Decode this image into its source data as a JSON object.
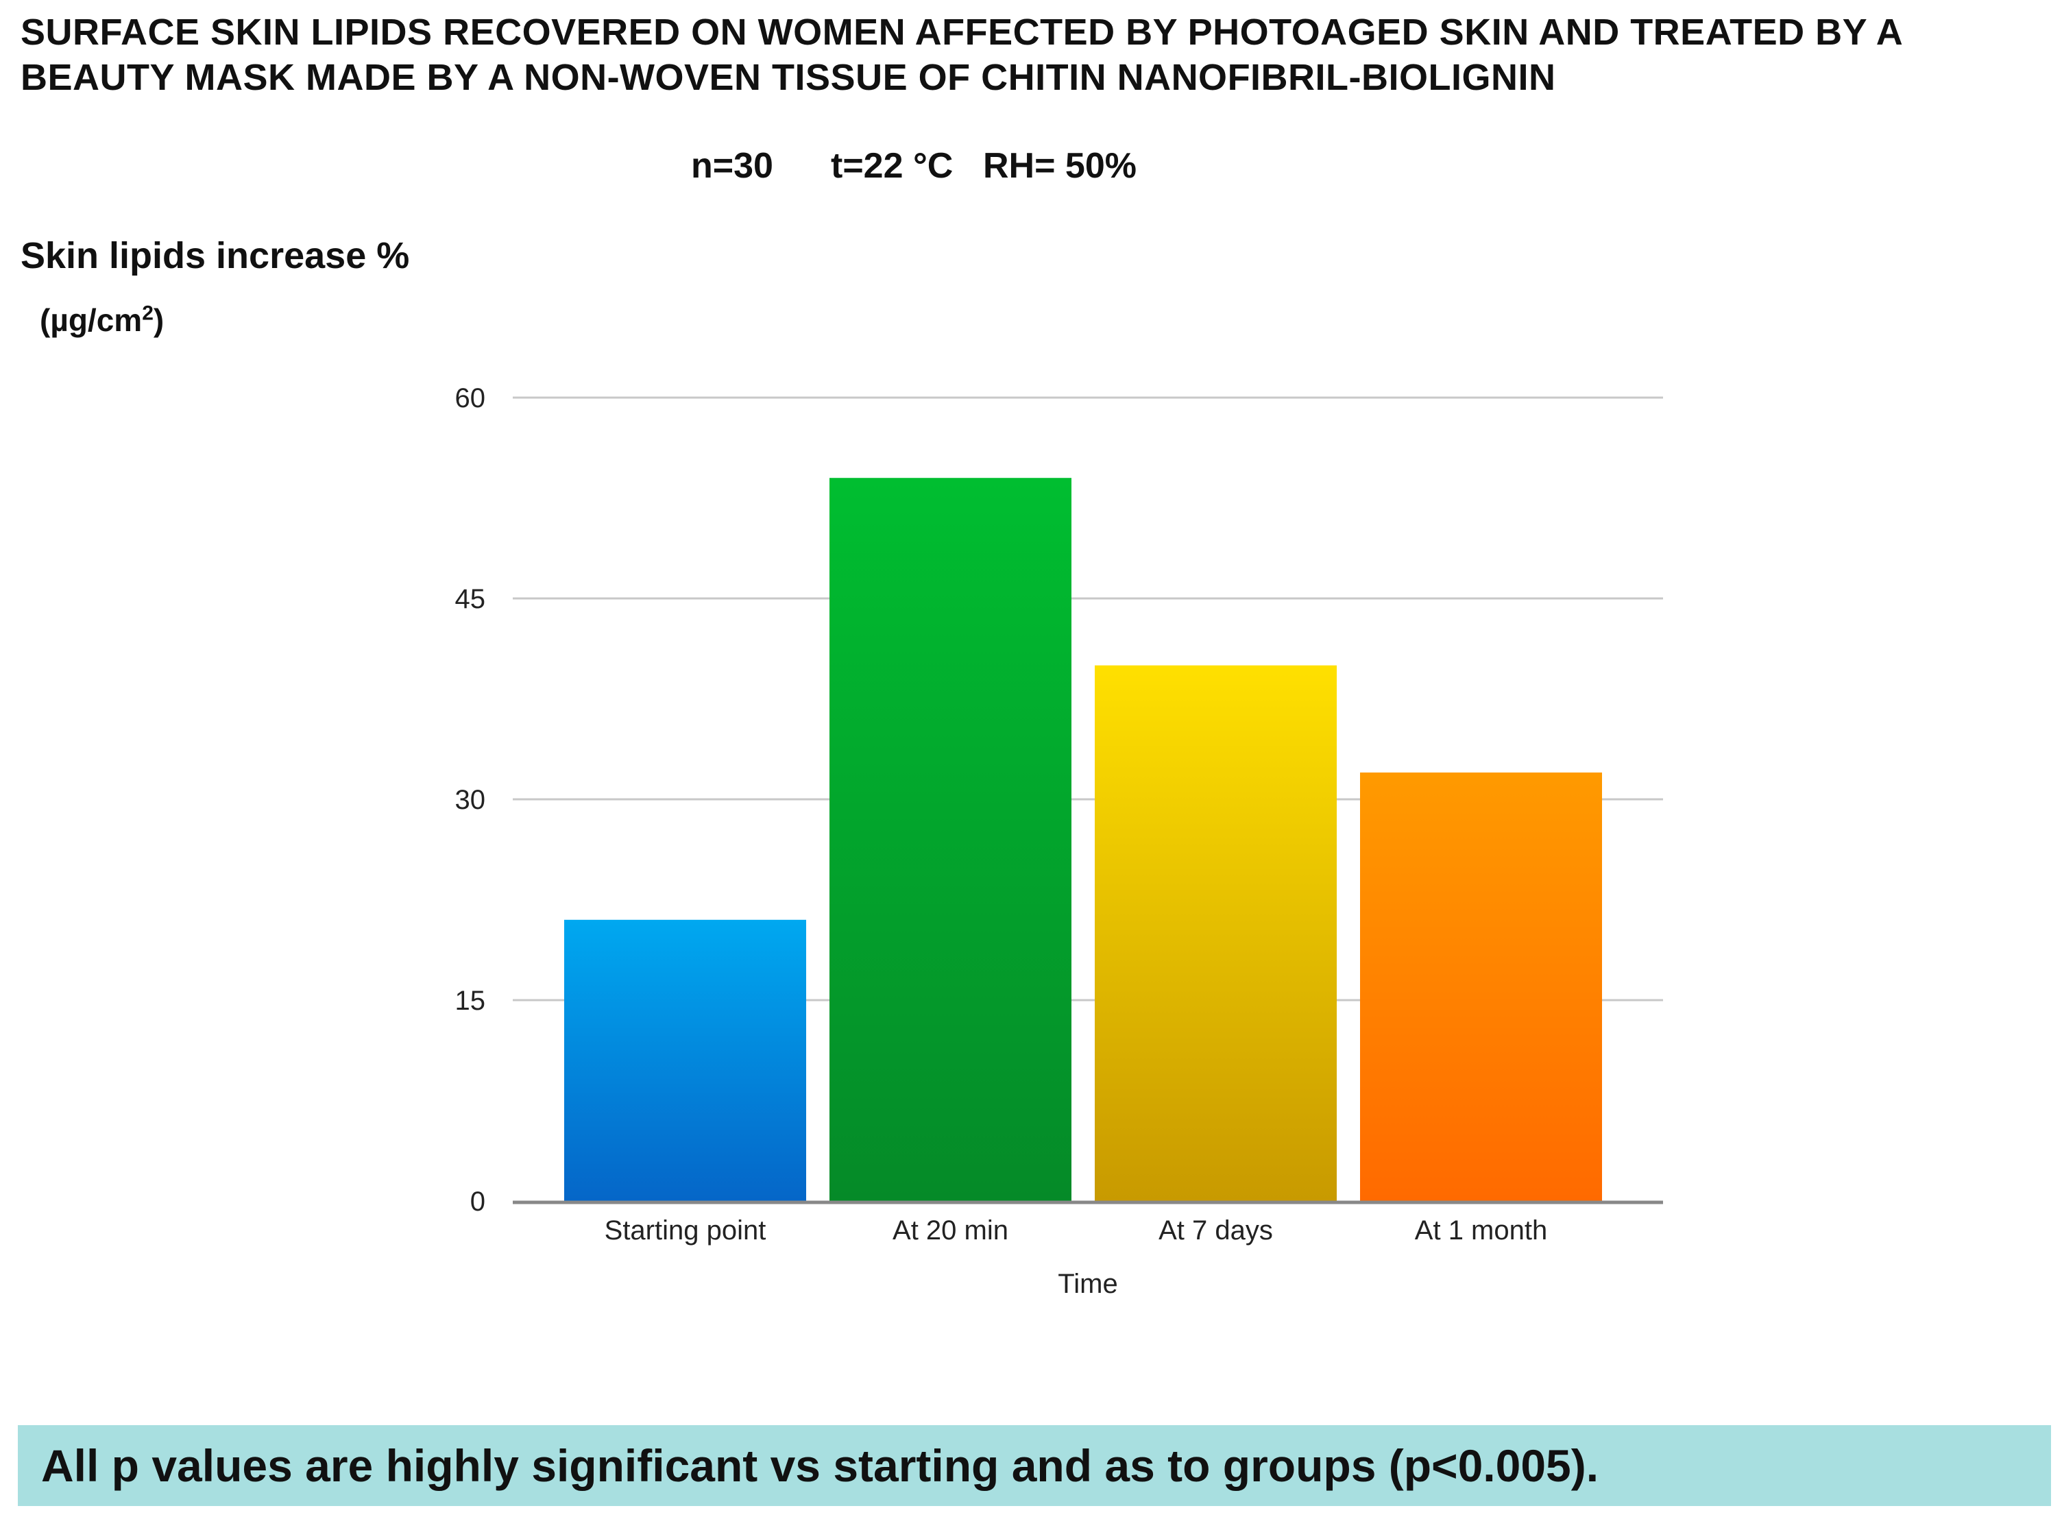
{
  "title_lines": [
    "SURFACE SKIN LIPIDS RECOVERED ON WOMEN AFFECTED BY PHOTOAGED SKIN AND TREATED BY A",
    "BEAUTY MASK MADE BY A NON-WOVEN TISSUE OF CHITIN NANOFIBRIL-BIOLIGNIN"
  ],
  "conditions": {
    "n": "n=30",
    "t": "t=22 °C",
    "rh": "RH= 50%"
  },
  "y_axis": {
    "label": "Skin lipids increase %",
    "unit_prefix": "(µg/cm",
    "unit_sup": "2",
    "unit_suffix": ")"
  },
  "footnote": "All p values are highly significant vs starting and as to groups (p<0.005).",
  "colors": {
    "gridline": "#c8c8c8",
    "axis": "#888888",
    "footnote_bg": "#a8dfe0"
  },
  "chart_data": {
    "type": "bar",
    "title": "SURFACE SKIN LIPIDS RECOVERED ON WOMEN AFFECTED BY PHOTOAGED SKIN AND TREATED BY A BEAUTY MASK MADE BY A NON-WOVEN TISSUE OF CHITIN NANOFIBRIL-BIOLIGNIN",
    "xlabel": "Time",
    "ylabel": "Skin lipids increase % (µg/cm2)",
    "categories": [
      "Starting point",
      "At 20 min",
      "At 7 days",
      "At 1 month"
    ],
    "values": [
      21,
      54,
      40,
      32
    ],
    "ylim": [
      0,
      60
    ],
    "yticks": [
      0,
      15,
      30,
      45,
      60
    ],
    "grid": true,
    "bar_colors": [
      [
        "#00a8f0",
        "#0566c8"
      ],
      [
        "#00be30",
        "#058a28"
      ],
      [
        "#ffe000",
        "#c89a00"
      ],
      [
        "#ff9a00",
        "#ff6a00"
      ]
    ]
  }
}
